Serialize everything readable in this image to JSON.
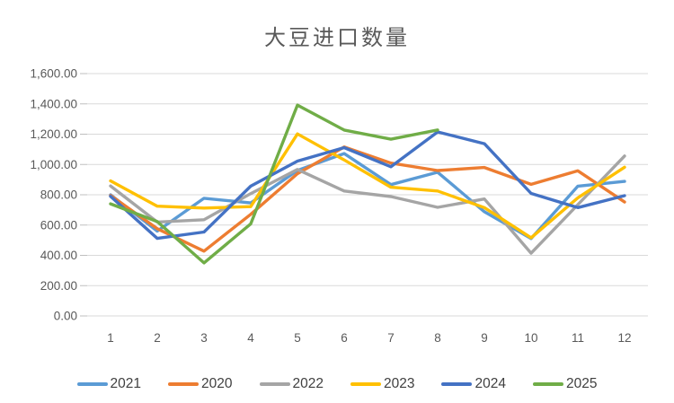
{
  "title": "大豆进口数量",
  "chart_data": {
    "type": "line",
    "x": [
      "1",
      "2",
      "3",
      "4",
      "5",
      "6",
      "7",
      "8",
      "9",
      "10",
      "11",
      "12"
    ],
    "series": [
      {
        "name": "2021",
        "color": "#5B9BD5",
        "values": [
          800,
          560,
          777,
          746,
          961,
          1072,
          867,
          949,
          688,
          511,
          857,
          888
        ]
      },
      {
        "name": "2020",
        "color": "#ED7D31",
        "values": [
          795,
          576,
          428,
          671,
          939,
          1116,
          1009,
          960,
          980,
          869,
          958,
          752
        ]
      },
      {
        "name": "2022",
        "color": "#A5A5A5",
        "values": [
          858,
          620,
          635,
          808,
          967,
          825,
          788,
          717,
          772,
          414,
          735,
          1056
        ]
      },
      {
        "name": "2023",
        "color": "#FFC000",
        "values": [
          892,
          725,
          712,
          722,
          1202,
          1030,
          850,
          825,
          715,
          516,
          780,
          982
        ]
      },
      {
        "name": "2024",
        "color": "#4472C4",
        "values": [
          790,
          512,
          554,
          857,
          1022,
          1111,
          985,
          1215,
          1137,
          809,
          715,
          794
        ]
      },
      {
        "name": "2025",
        "color": "#70AD47",
        "values": [
          740,
          623,
          350,
          608,
          1392,
          1227,
          1167,
          1228,
          null,
          null,
          null,
          null
        ]
      }
    ],
    "ylim": [
      0,
      1600
    ],
    "ytick_step": 200,
    "ytick_labels": [
      "0.00",
      "200.00",
      "400.00",
      "600.00",
      "800.00",
      "1,000.00",
      "1,200.00",
      "1,400.00",
      "1,600.00"
    ],
    "grid": true,
    "legend_position": "bottom",
    "gridline_color": "#d9d9d9"
  }
}
